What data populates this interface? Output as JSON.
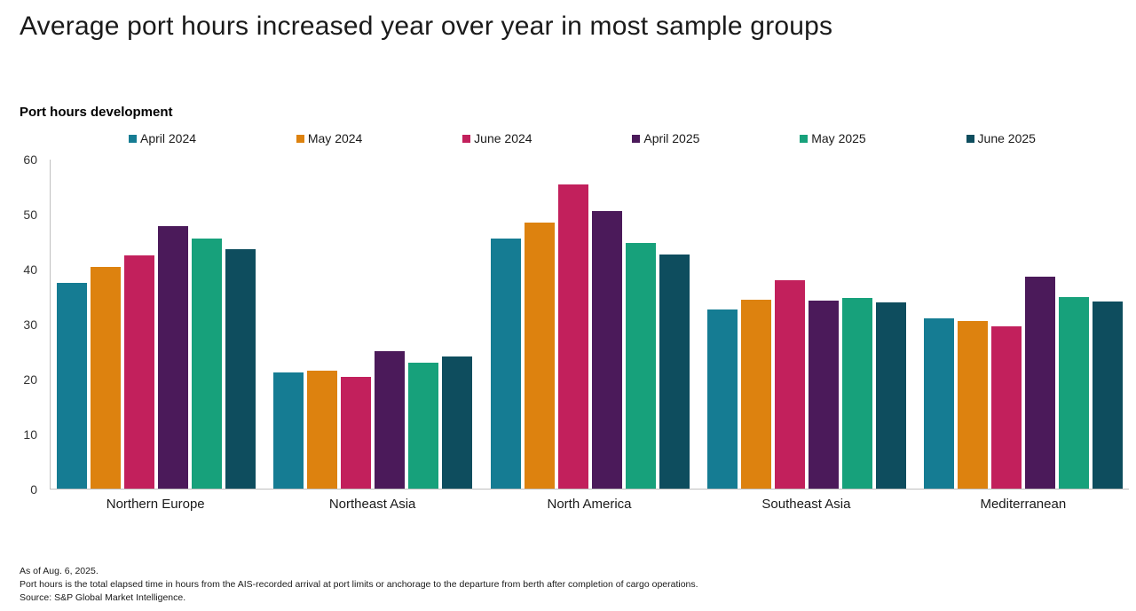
{
  "header": {
    "title": "Average port hours increased year over year in most sample groups"
  },
  "chart_data": {
    "type": "bar",
    "subtitle": "Port hours development",
    "categories": [
      "Northern Europe",
      "Northeast Asia",
      "North America",
      "Southeast Asia",
      "Mediterranean"
    ],
    "series": [
      {
        "name": "April 2024",
        "color": "#157C93",
        "values": [
          37.5,
          21.2,
          45.6,
          32.6,
          31.0
        ]
      },
      {
        "name": "May 2024",
        "color": "#DD820F",
        "values": [
          40.4,
          21.5,
          48.5,
          34.5,
          30.5
        ]
      },
      {
        "name": "June 2024",
        "color": "#C2205C",
        "values": [
          42.6,
          20.4,
          55.5,
          38.0,
          29.6
        ]
      },
      {
        "name": "April 2025",
        "color": "#4B1A5A",
        "values": [
          47.9,
          25.0,
          50.7,
          34.3,
          38.6
        ]
      },
      {
        "name": "May 2025",
        "color": "#17A17B",
        "values": [
          45.6,
          22.9,
          44.8,
          34.8,
          35.0
        ]
      },
      {
        "name": "June 2025",
        "color": "#0E4D5E",
        "values": [
          43.6,
          24.1,
          42.7,
          33.9,
          34.1
        ]
      }
    ],
    "xlabel": "",
    "ylabel": "",
    "ylim": [
      0,
      60
    ],
    "ytick_step": 10,
    "grid": false,
    "legend_position": "top"
  },
  "footer": {
    "lines": {
      "as_of": "As of Aug. 6, 2025.",
      "definition": "Port hours is the total elapsed time in hours from the AIS-recorded arrival at port limits or anchorage to the departure from berth after completion of cargo operations.",
      "source": "Source: S&P Global Market Intelligence."
    }
  }
}
